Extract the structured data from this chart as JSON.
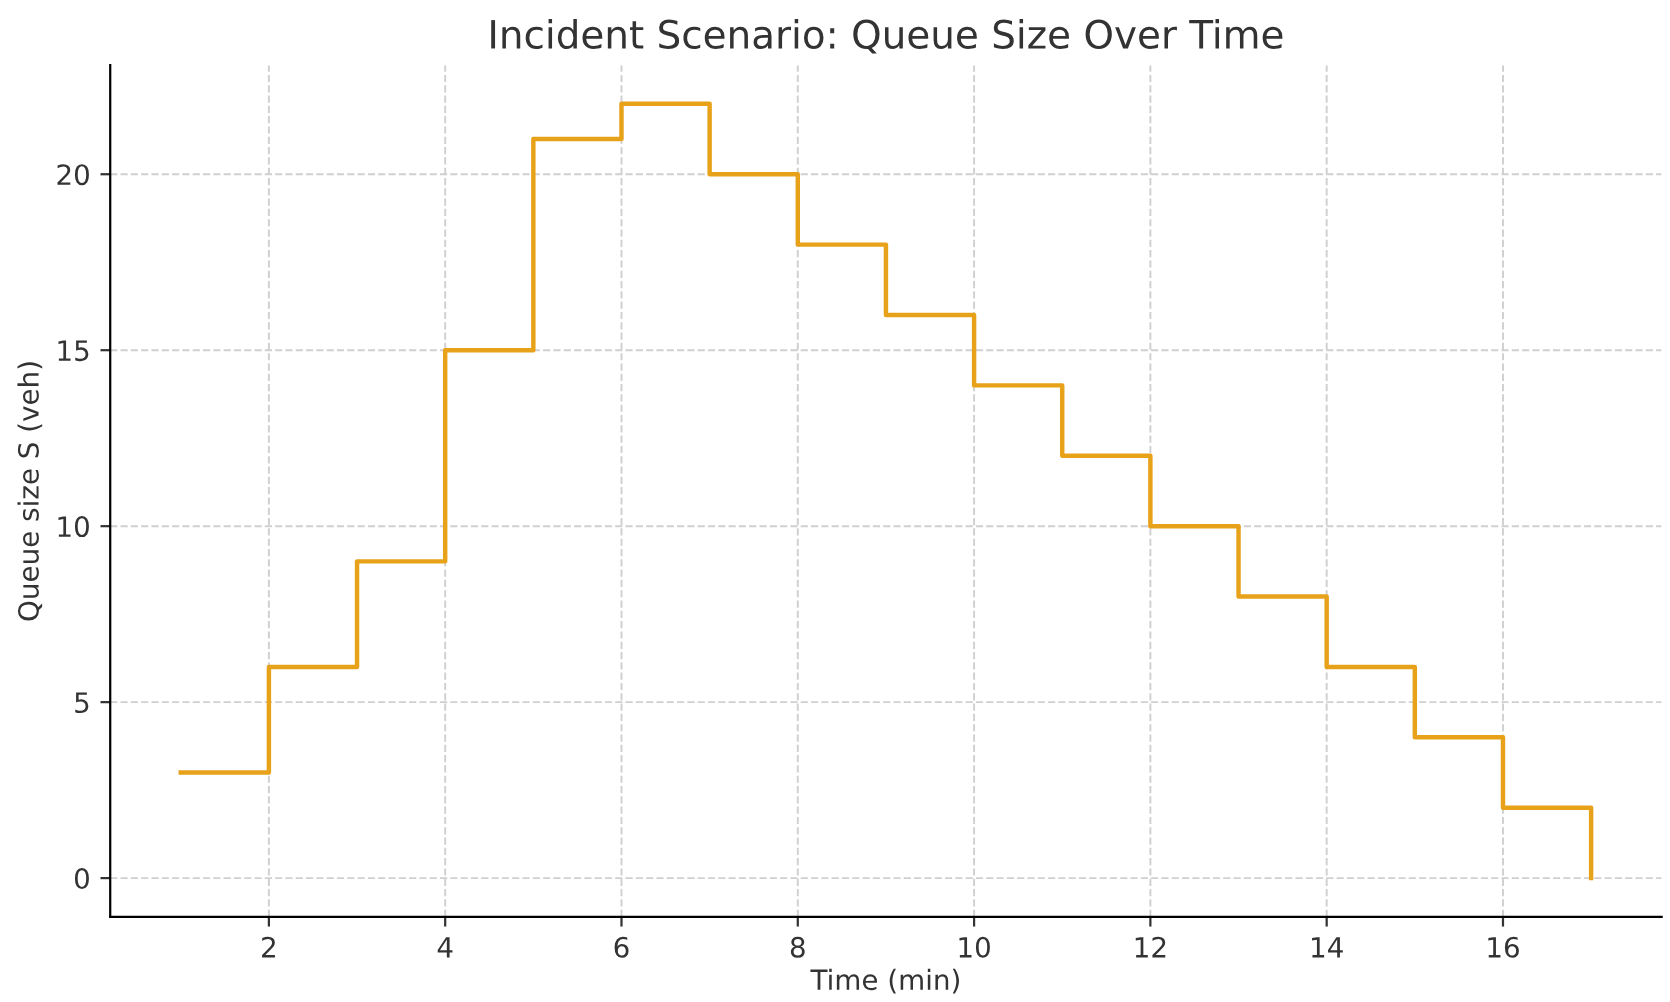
{
  "chart_data": {
    "type": "step",
    "title": "Incident Scenario: Queue Size Over Time",
    "xlabel": "Time (min)",
    "ylabel": "Queue size S (veh)",
    "x": [
      1,
      2,
      3,
      4,
      5,
      6,
      7,
      8,
      9,
      10,
      11,
      12,
      13,
      14,
      15,
      16,
      17
    ],
    "series": [
      {
        "color": "#e8a21a",
        "values": [
          3,
          6,
          9,
          15,
          21,
          22,
          20,
          18,
          16,
          14,
          12,
          10,
          8,
          6,
          4,
          2,
          0
        ]
      }
    ],
    "xlim": [
      0.2,
      17.8
    ],
    "ylim": [
      -1.1,
      23.1
    ],
    "xticks": [
      2,
      4,
      6,
      8,
      10,
      12,
      14,
      16
    ],
    "yticks": [
      0,
      5,
      10,
      15,
      20
    ],
    "grid": true,
    "line_style": "solid"
  }
}
